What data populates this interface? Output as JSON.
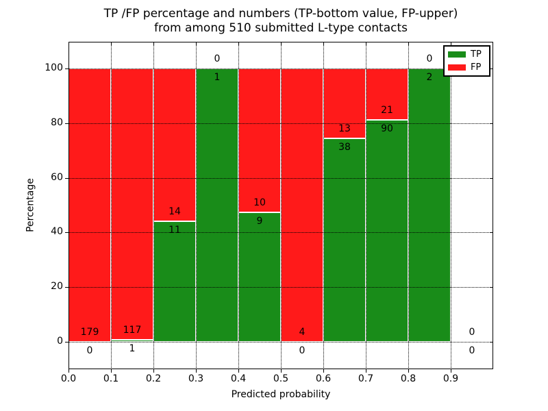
{
  "figure": {
    "title_lines": [
      "TP /FP percentage and numbers (TP-bottom value, FP-upper)",
      "from among 510 submitted L-type contacts"
    ]
  },
  "chart_data": {
    "type": "bar",
    "subtype": "stacked-percentage-histogram",
    "title": "TP /FP percentage and numbers (TP-bottom value, FP-upper)\nfrom among 510 submitted L-type contacts",
    "xlabel": "Predicted probability",
    "ylabel": "Percentage",
    "x_tick_labels": [
      "0.0",
      "0.1",
      "0.2",
      "0.3",
      "0.4",
      "0.5",
      "0.6",
      "0.7",
      "0.8",
      "0.9"
    ],
    "y_tick_values": [
      0,
      20,
      40,
      60,
      80,
      100
    ],
    "y_tick_labels": [
      "0",
      "20",
      "40",
      "60",
      "80",
      "100"
    ],
    "x_range": [
      0.0,
      1.0
    ],
    "ylim": [
      -10,
      110
    ],
    "grid": true,
    "grid_style": "dotted",
    "total_contacts": 510,
    "legend": {
      "position": "upper-right",
      "entries": [
        {
          "label": "TP",
          "color": "#198c19"
        },
        {
          "label": "FP",
          "color": "#ff1a1a"
        }
      ]
    },
    "colors": {
      "tp": "#198c19",
      "fp": "#ff1a1a",
      "grid": "#000000",
      "bar_edge": "#ffffff",
      "background": "#ffffff"
    },
    "bins": [
      {
        "x_start": 0.0,
        "x_end": 0.1,
        "tp": 0,
        "fp": 179
      },
      {
        "x_start": 0.1,
        "x_end": 0.2,
        "tp": 1,
        "fp": 117
      },
      {
        "x_start": 0.2,
        "x_end": 0.3,
        "tp": 11,
        "fp": 14
      },
      {
        "x_start": 0.3,
        "x_end": 0.4,
        "tp": 1,
        "fp": 0
      },
      {
        "x_start": 0.4,
        "x_end": 0.5,
        "tp": 9,
        "fp": 10
      },
      {
        "x_start": 0.5,
        "x_end": 0.6,
        "tp": 0,
        "fp": 4
      },
      {
        "x_start": 0.6,
        "x_end": 0.7,
        "tp": 38,
        "fp": 13
      },
      {
        "x_start": 0.7,
        "x_end": 0.8,
        "tp": 90,
        "fp": 21
      },
      {
        "x_start": 0.8,
        "x_end": 0.9,
        "tp": 2,
        "fp": 0
      },
      {
        "x_start": 0.9,
        "x_end": 1.0,
        "tp": 0,
        "fp": 0
      }
    ]
  }
}
